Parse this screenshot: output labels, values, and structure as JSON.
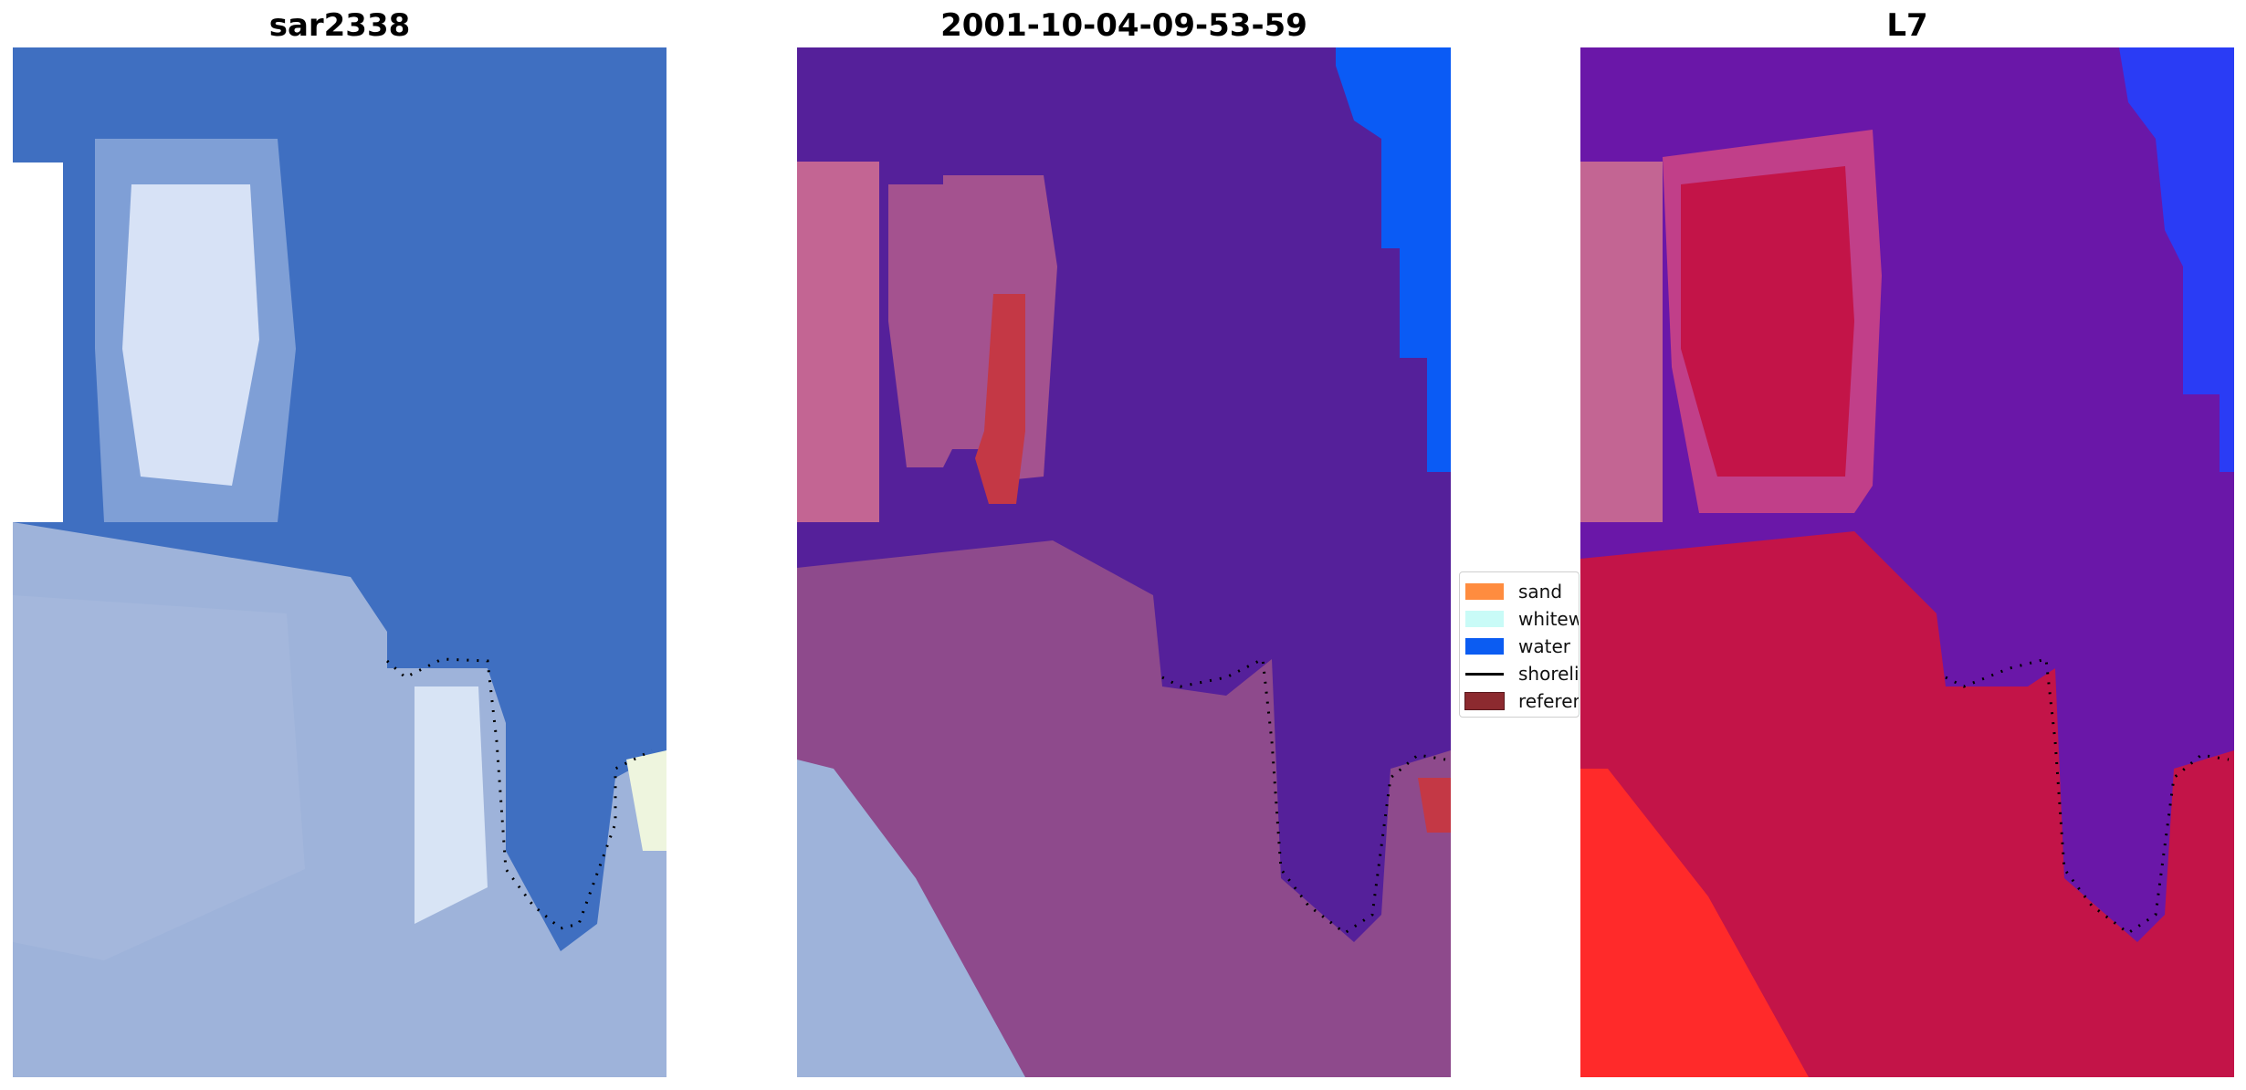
{
  "panels": [
    {
      "title": "sar2338"
    },
    {
      "title": "2001-10-04-09-53-59"
    },
    {
      "title": "L7"
    }
  ],
  "legend": {
    "items": [
      {
        "label": "sand",
        "color": "#ff8c3f",
        "kind": "patch"
      },
      {
        "label": "whitewater",
        "color": "#c9fbf7",
        "kind": "patch"
      },
      {
        "label": "water",
        "color": "#0b5cf2",
        "kind": "patch"
      },
      {
        "label": "shoreline",
        "color": "#000000",
        "kind": "line"
      },
      {
        "label": "reference",
        "color": "#8c2a2f",
        "kind": "patch"
      }
    ]
  },
  "colors": {
    "background": "#ffffff",
    "satellite_water": "#3f6fc1",
    "satellite_land": "#9eb3da",
    "classified_water": "#55209a",
    "classified_land": "#8e4a8c",
    "classified_pink": "#c36593",
    "classified_red": "#c43845",
    "classified_blue": "#0a5bf5",
    "index_purple": "#6a17a8",
    "index_crimson": "#c31448",
    "index_red": "#ff2a2a",
    "index_blue": "#2a3cf5",
    "shoreline": "#000000"
  }
}
